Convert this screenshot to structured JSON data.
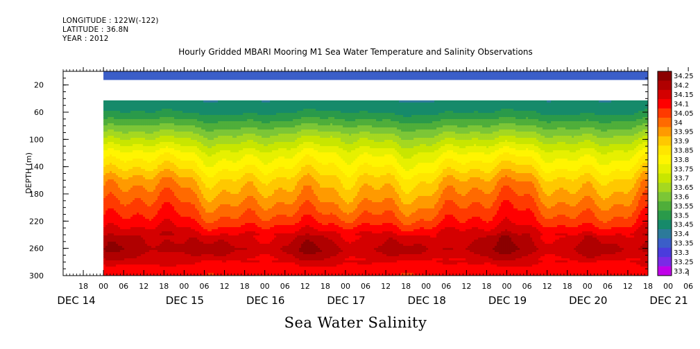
{
  "meta_lines": {
    "longitude": "LONGITUDE : 122W(-122)",
    "latitude": "LATITUDE : 36.8N",
    "year": "YEAR : 2012"
  },
  "chart_data": {
    "type": "heatmap",
    "title": "Hourly Gridded MBARI Mooring M1 Sea Water Temperature and Salinity Observations",
    "xlabel": "Sea Water Salinity",
    "ylabel": "DEPTH (m)",
    "ylim": [
      300,
      0
    ],
    "y_ticks": [
      20,
      60,
      100,
      140,
      180,
      220,
      260,
      300
    ],
    "x_hour_ticks": [
      "18",
      "00",
      "06",
      "12",
      "18",
      "00",
      "06",
      "12",
      "18",
      "00",
      "06",
      "12",
      "18",
      "00",
      "06",
      "12",
      "18",
      "00",
      "06",
      "12",
      "18",
      "00",
      "06",
      "12",
      "18",
      "00",
      "06",
      "12",
      "18",
      "00",
      "06",
      "12"
    ],
    "x_day_labels": [
      "DEC 14",
      "DEC 15",
      "DEC 16",
      "DEC 17",
      "DEC 18",
      "DEC 19",
      "DEC 20",
      "DEC 21"
    ],
    "x_range": [
      "2012-12-14 12:00",
      "2012-12-21 18:00"
    ],
    "data_start": "2012-12-15 00:00",
    "colorbar_levels": [
      "34.25",
      "34.2",
      "34.15",
      "34.1",
      "34.05",
      "34",
      "33.95",
      "33.9",
      "33.85",
      "33.8",
      "33.75",
      "33.7",
      "33.65",
      "33.6",
      "33.55",
      "33.5",
      "33.45",
      "33.4",
      "33.35",
      "33.3",
      "33.25",
      "33.2"
    ],
    "colorbar_colors": [
      "#8b0000",
      "#b00000",
      "#d40000",
      "#ff0000",
      "#ff3a00",
      "#ff6a00",
      "#ff9a00",
      "#ffc800",
      "#ffe600",
      "#fff500",
      "#e6f000",
      "#c8e600",
      "#a5d820",
      "#7cc636",
      "#4fae3a",
      "#2a9a4a",
      "#168a6a",
      "#2c7a9a",
      "#3b5ec8",
      "#4a3cdc",
      "#7a2ae6",
      "#c000e8"
    ],
    "profile": {
      "depths": [
        10,
        40,
        60,
        80,
        100,
        120,
        140,
        160,
        180,
        200,
        220,
        240,
        260,
        280,
        300
      ],
      "typical_values": [
        33.37,
        33.45,
        33.5,
        33.6,
        33.7,
        33.8,
        33.87,
        33.95,
        34.0,
        34.05,
        34.1,
        34.18,
        34.22,
        34.15,
        34.1
      ],
      "gap_depth_range": [
        12,
        40
      ]
    }
  }
}
